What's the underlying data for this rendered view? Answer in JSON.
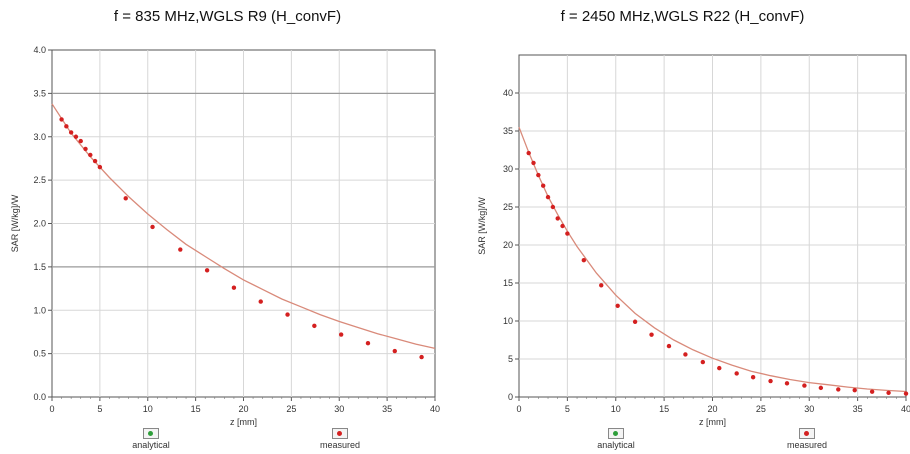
{
  "charts": [
    {
      "title": "f = 835 MHz,WGLS R9 (H_convF)",
      "legend": [
        "analytical",
        "measured"
      ]
    },
    {
      "title": "f = 2450 MHz,WGLS R22 (H_convF)",
      "legend": [
        "analytical",
        "measured"
      ]
    }
  ],
  "colors": {
    "analytical": "#2e9e3a",
    "measured": "#d42020",
    "curve": "#d98a7a",
    "grid": "#d7d7d7"
  },
  "chart_data": [
    {
      "type": "scatter",
      "title": "f = 835 MHz,WGLS R9 (H_convF)",
      "xlabel": "z [mm]",
      "ylabel": "SAR [W/kg]/W",
      "xlim": [
        0,
        40
      ],
      "ylim": [
        0,
        4
      ],
      "xticks": [
        "0",
        "5",
        "10",
        "15",
        "20",
        "25",
        "30",
        "35",
        "40"
      ],
      "yticks": [
        "0.0",
        "0.5",
        "1.0",
        "1.5",
        "2.0",
        "2.5",
        "3.0",
        "3.5",
        "4.0"
      ],
      "ytick_values": [
        0,
        0.5,
        1.0,
        1.5,
        2.0,
        2.5,
        3.0,
        3.5,
        4.0
      ],
      "highlight_gridlines": [
        1.5,
        3.5
      ],
      "series": [
        {
          "name": "analytical",
          "kind": "line",
          "x": [
            0,
            2,
            4,
            6,
            8,
            10,
            12,
            14,
            16,
            18,
            20,
            22,
            24,
            26,
            28,
            30,
            32,
            34,
            36,
            38,
            40
          ],
          "y": [
            3.38,
            3.04,
            2.77,
            2.53,
            2.31,
            2.11,
            1.93,
            1.76,
            1.62,
            1.48,
            1.35,
            1.24,
            1.13,
            1.04,
            0.95,
            0.87,
            0.8,
            0.73,
            0.67,
            0.61,
            0.56
          ]
        },
        {
          "name": "measured",
          "kind": "points",
          "x": [
            1,
            1.5,
            2,
            2.5,
            3,
            3.5,
            4,
            4.5,
            5,
            7.7,
            10.5,
            13.4,
            16.2,
            19,
            21.8,
            24.6,
            27.4,
            30.2,
            33,
            35.8,
            38.6
          ],
          "y": [
            3.2,
            3.12,
            3.05,
            3.0,
            2.95,
            2.86,
            2.79,
            2.72,
            2.65,
            2.29,
            1.96,
            1.7,
            1.46,
            1.26,
            1.1,
            0.95,
            0.82,
            0.72,
            0.62,
            0.53,
            0.46
          ]
        }
      ]
    },
    {
      "type": "scatter",
      "title": "f = 2450 MHz,WGLS R22 (H_convF)",
      "xlabel": "z [mm]",
      "ylabel": "SAR [W/kg]/W",
      "xlim": [
        0,
        40
      ],
      "ylim": [
        0,
        45
      ],
      "xticks": [
        "0",
        "5",
        "10",
        "15",
        "20",
        "25",
        "30",
        "35",
        "40"
      ],
      "yticks": [
        "0",
        "5",
        "10",
        "15",
        "20",
        "25",
        "30",
        "35",
        "40"
      ],
      "ytick_values": [
        0,
        5,
        10,
        15,
        20,
        25,
        30,
        35,
        40
      ],
      "highlight_gridlines": [],
      "series": [
        {
          "name": "analytical",
          "kind": "line",
          "x": [
            0,
            1,
            2,
            3,
            4,
            5,
            6,
            8,
            10,
            12,
            14,
            16,
            18,
            20,
            22,
            24,
            26,
            28,
            30,
            32,
            34,
            36,
            38,
            40
          ],
          "y": [
            35.5,
            32.2,
            29.2,
            26.4,
            24.0,
            21.8,
            19.8,
            16.3,
            13.4,
            11.0,
            9.1,
            7.5,
            6.2,
            5.1,
            4.2,
            3.4,
            2.8,
            2.3,
            1.9,
            1.6,
            1.3,
            1.05,
            0.87,
            0.72
          ]
        },
        {
          "name": "measured",
          "kind": "points",
          "x": [
            1,
            1.5,
            2,
            2.5,
            3,
            3.5,
            4,
            4.5,
            5,
            6.7,
            8.5,
            10.2,
            12,
            13.7,
            15.5,
            17.2,
            19,
            20.7,
            22.5,
            24.2,
            26,
            27.7,
            29.5,
            31.2,
            33,
            34.7,
            36.5,
            38.2,
            40
          ],
          "y": [
            32.1,
            30.8,
            29.2,
            27.8,
            26.3,
            25.0,
            23.5,
            22.5,
            21.5,
            18.0,
            14.7,
            12.0,
            9.9,
            8.2,
            6.7,
            5.6,
            4.6,
            3.8,
            3.1,
            2.6,
            2.1,
            1.8,
            1.5,
            1.2,
            1.0,
            0.9,
            0.7,
            0.55,
            0.45
          ]
        }
      ]
    }
  ]
}
